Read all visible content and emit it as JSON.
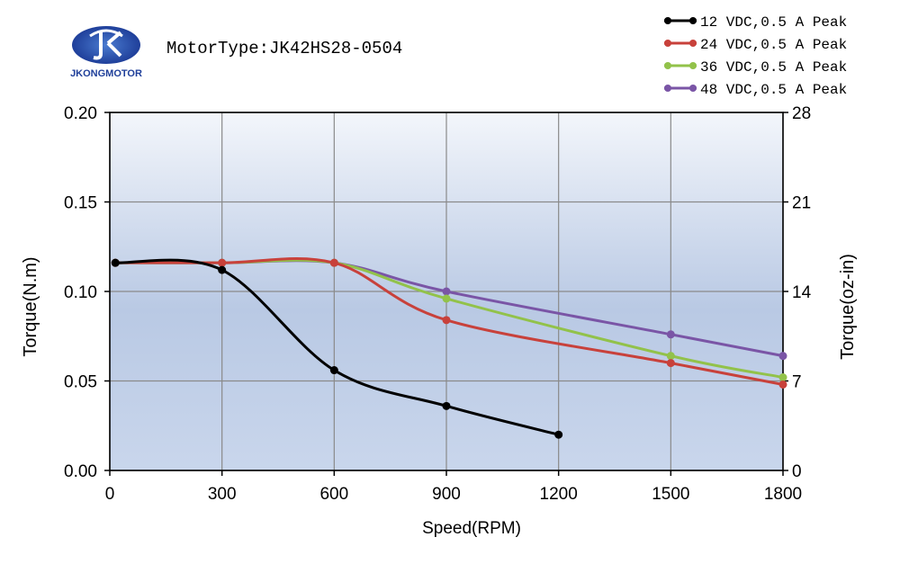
{
  "brand": {
    "name": "JKONGMOTOR",
    "colors": {
      "primary": "#1f3f9a",
      "accent": "#4a7bd0"
    }
  },
  "header": {
    "motor_type": "MotorType:JK42HS28-0504"
  },
  "chart_data": {
    "type": "line",
    "title": "",
    "xlabel": "Speed(RPM)",
    "ylabel": "Torque(N.m)",
    "ylabel_right": "Torque(oz-in)",
    "xlim": [
      0,
      1800
    ],
    "ylim": [
      0,
      0.2
    ],
    "ylim_right": [
      0,
      28
    ],
    "x_ticks": [
      "0",
      "300",
      "600",
      "900",
      "1200",
      "1500",
      "1800"
    ],
    "y_ticks": [
      "0.00",
      "0.05",
      "0.10",
      "0.15",
      "0.20"
    ],
    "y_ticks_right": [
      "0",
      "7",
      "14",
      "21",
      "28"
    ],
    "grid": true,
    "legend_position": "top-right",
    "series": [
      {
        "name": "12 VDC,0.5 A Peak",
        "color": "#000000",
        "points": [
          [
            15,
            0.116
          ],
          [
            300,
            0.112
          ],
          [
            600,
            0.056
          ],
          [
            900,
            0.036
          ],
          [
            1200,
            0.02
          ]
        ]
      },
      {
        "name": "24 VDC,0.5 A Peak",
        "color": "#c8413b",
        "points": [
          [
            15,
            0.116
          ],
          [
            300,
            0.116
          ],
          [
            600,
            0.116
          ],
          [
            900,
            0.084
          ],
          [
            1500,
            0.06
          ],
          [
            1800,
            0.048
          ]
        ]
      },
      {
        "name": "36 VDC,0.5 A Peak",
        "color": "#92c24a",
        "points": [
          [
            15,
            0.116
          ],
          [
            300,
            0.116
          ],
          [
            600,
            0.116
          ],
          [
            900,
            0.096
          ],
          [
            1500,
            0.064
          ],
          [
            1800,
            0.052
          ]
        ]
      },
      {
        "name": "48 VDC,0.5 A Peak",
        "color": "#7a55a6",
        "points": [
          [
            15,
            0.116
          ],
          [
            300,
            0.116
          ],
          [
            600,
            0.116
          ],
          [
            900,
            0.1
          ],
          [
            1500,
            0.076
          ],
          [
            1800,
            0.064
          ]
        ]
      }
    ]
  }
}
